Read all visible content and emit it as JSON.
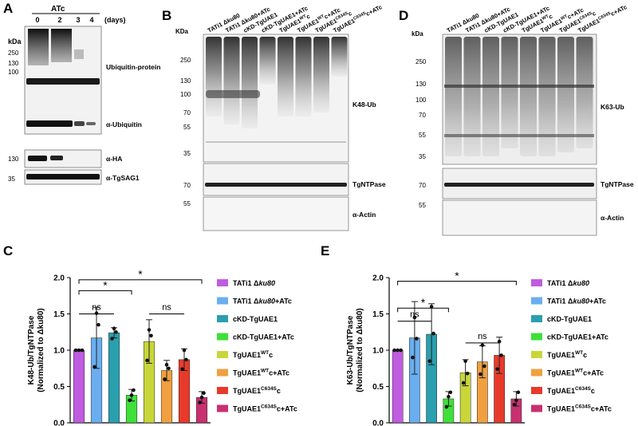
{
  "panels": {
    "A": {
      "letter": "A",
      "kda": "kDa",
      "treatment": "ATc",
      "lanes": [
        "0",
        "2",
        "3",
        "4"
      ],
      "lane_unit": "(days)",
      "markers": [
        "250",
        "130",
        "100",
        "130",
        "35"
      ],
      "labels": [
        "Ubiquitin-protein",
        "α-Ubiquitin",
        "α-HA",
        "α-TgSAG1"
      ]
    },
    "B": {
      "letter": "B",
      "kda": "KDa",
      "markers": [
        "250",
        "130",
        "100",
        "70",
        "55",
        "35",
        "70",
        "55"
      ],
      "labels": [
        "K48-Ub",
        "TgNTPase",
        "α-Actin"
      ]
    },
    "D": {
      "letter": "D",
      "kda": "kDa",
      "markers": [
        "250",
        "130",
        "100",
        "70",
        "55",
        "35",
        "70",
        "55"
      ],
      "labels": [
        "K63-Ub",
        "TgNTPase",
        "α-Actin"
      ]
    },
    "C": {
      "letter": "C"
    },
    "E": {
      "letter": "E"
    }
  },
  "lane_labels": [
    {
      "base": "TATi1 Δku80",
      "sup": "",
      "suffix": ""
    },
    {
      "base": "TATi1 Δku80+ATc",
      "sup": "",
      "suffix": ""
    },
    {
      "base": "cKD-TgUAE1",
      "sup": "",
      "suffix": ""
    },
    {
      "base": "cKD-TgUAE1+ATc",
      "sup": "",
      "suffix": ""
    },
    {
      "base": "TgUAE1",
      "sup": "WT",
      "suffix": "c"
    },
    {
      "base": "TgUAE1",
      "sup": "WT",
      "suffix": "c+ATc"
    },
    {
      "base": "TgUAE1",
      "sup": "C634S",
      "suffix": "c"
    },
    {
      "base": "TgUAE1",
      "sup": "C634S",
      "suffix": "c+ATc"
    }
  ],
  "legend": [
    {
      "base": "TATi1 Δ",
      "ital": "ku80",
      "sup": "",
      "suffix": "",
      "color": "#c05ce0"
    },
    {
      "base": "TATi1 Δ",
      "ital": "ku80",
      "sup": "",
      "suffix": "+ATc",
      "color": "#6aaef0"
    },
    {
      "base": "cKD-TgUAE1",
      "ital": "",
      "sup": "",
      "suffix": "",
      "color": "#2a9fae"
    },
    {
      "base": "cKD-TgUAE1+ATc",
      "ital": "",
      "sup": "",
      "suffix": "",
      "color": "#3fe03a"
    },
    {
      "base": "TgUAE1",
      "ital": "",
      "sup": "WT",
      "suffix": "c",
      "color": "#c8d63a"
    },
    {
      "base": "TgUAE1",
      "ital": "",
      "sup": "WT",
      "suffix": "c+ATc",
      "color": "#f0a040"
    },
    {
      "base": "TgUAE1",
      "ital": "",
      "sup": "C634S",
      "suffix": "c",
      "color": "#e83a2a"
    },
    {
      "base": "TgUAE1",
      "ital": "",
      "sup": "C634S",
      "suffix": "c+ATc",
      "color": "#c83070"
    }
  ],
  "chart_data": [
    {
      "type": "bar",
      "ylabel_line1": "K48-Ub/TgNTPase",
      "ylabel_line2": "(Normalized to Δku80)",
      "ylim": [
        0,
        2.0
      ],
      "yticks": [
        "0.0",
        "0.5",
        "1.0",
        "1.5",
        "2.0"
      ],
      "values": [
        1.0,
        1.17,
        1.24,
        0.38,
        1.12,
        0.72,
        0.87,
        0.35
      ],
      "errors": [
        0.0,
        0.42,
        0.07,
        0.08,
        0.3,
        0.14,
        0.15,
        0.08
      ],
      "points": [
        [
          1.0,
          1.0,
          1.0
        ],
        [
          0.77,
          1.51,
          1.35
        ],
        [
          1.16,
          1.3,
          1.25
        ],
        [
          0.31,
          0.38,
          0.45
        ],
        [
          0.86,
          1.28,
          1.2
        ],
        [
          0.6,
          0.8,
          0.75
        ],
        [
          0.74,
          1.0,
          0.87
        ],
        [
          0.28,
          0.35,
          0.41
        ]
      ],
      "significance": [
        {
          "from": 0,
          "to": 3,
          "label": "*",
          "level": 1.82
        },
        {
          "from": 0,
          "to": 7,
          "label": "*",
          "level": 1.97
        },
        {
          "from": 0,
          "to": 2,
          "label": "ns",
          "level": 1.5
        },
        {
          "from": 4,
          "to": 6,
          "label": "ns",
          "level": 1.5
        }
      ]
    },
    {
      "type": "bar",
      "ylabel_line1": "K63-Ub/TgNTPase",
      "ylabel_line2": "(Normalized to Δku80)",
      "ylim": [
        0,
        2.0
      ],
      "yticks": [
        "0.0",
        "0.5",
        "1.0",
        "1.5",
        "2.0"
      ],
      "values": [
        1.0,
        1.17,
        1.22,
        0.33,
        0.69,
        0.84,
        0.93,
        0.33
      ],
      "errors": [
        0.0,
        0.5,
        0.42,
        0.1,
        0.18,
        0.22,
        0.25,
        0.1
      ],
      "points": [
        [
          1.0,
          1.0,
          1.0
        ],
        [
          0.9,
          1.45,
          1.16
        ],
        [
          0.85,
          1.6,
          1.23
        ],
        [
          0.22,
          0.36,
          0.42
        ],
        [
          0.55,
          0.85,
          0.68
        ],
        [
          0.67,
          1.07,
          0.78
        ],
        [
          0.74,
          1.12,
          0.93
        ],
        [
          0.25,
          0.31,
          0.42
        ]
      ],
      "significance": [
        {
          "from": 0,
          "to": 3,
          "label": "*",
          "level": 1.58
        },
        {
          "from": 0,
          "to": 7,
          "label": "*",
          "level": 1.95
        },
        {
          "from": 0,
          "to": 2,
          "label": "ns",
          "level": 1.4
        },
        {
          "from": 4,
          "to": 6,
          "label": "ns",
          "level": 1.1
        }
      ]
    }
  ]
}
